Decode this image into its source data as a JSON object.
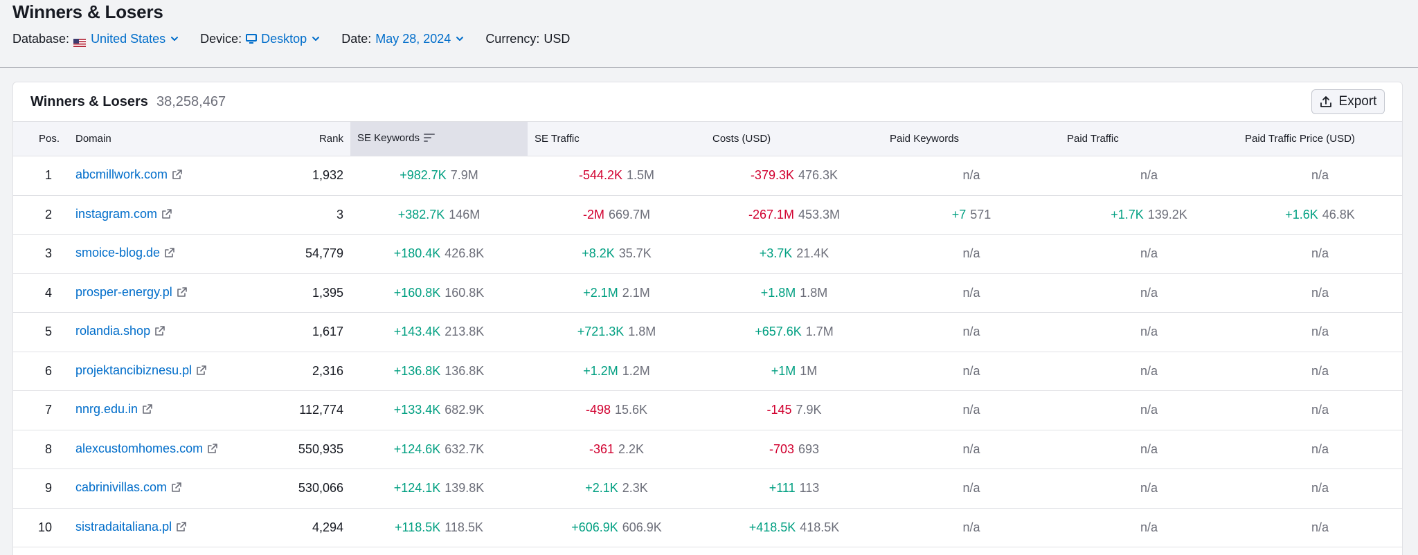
{
  "page": {
    "title": "Winners & Losers"
  },
  "filters": {
    "database_label": "Database:",
    "database_value": "United States",
    "device_label": "Device:",
    "device_value": "Desktop",
    "date_label": "Date:",
    "date_value": "May 28, 2024",
    "currency_label": "Currency:",
    "currency_value": "USD"
  },
  "card": {
    "title": "Winners & Losers",
    "count": "38,258,467",
    "export_label": "Export"
  },
  "table": {
    "columns": [
      "Pos.",
      "Domain",
      "Rank",
      "SE Keywords",
      "SE Traffic",
      "Costs (USD)",
      "Paid Keywords",
      "Paid Traffic",
      "Paid Traffic Price (USD)"
    ],
    "rows": [
      {
        "pos": "1",
        "domain": "abcmillwork.com",
        "rank": "1,932",
        "kw_delta": "+982.7K",
        "kw": "7.9M",
        "tr_delta": "-544.2K",
        "tr": "1.5M",
        "cost_delta": "-379.3K",
        "cost": "476.3K",
        "pk_delta": "",
        "pk": "n/a",
        "pt_delta": "",
        "pt": "n/a",
        "ptp_delta": "",
        "ptp": "n/a"
      },
      {
        "pos": "2",
        "domain": "instagram.com",
        "rank": "3",
        "kw_delta": "+382.7K",
        "kw": "146M",
        "tr_delta": "-2M",
        "tr": "669.7M",
        "cost_delta": "-267.1M",
        "cost": "453.3M",
        "pk_delta": "+7",
        "pk": "571",
        "pt_delta": "+1.7K",
        "pt": "139.2K",
        "ptp_delta": "+1.6K",
        "ptp": "46.8K"
      },
      {
        "pos": "3",
        "domain": "smoice-blog.de",
        "rank": "54,779",
        "kw_delta": "+180.4K",
        "kw": "426.8K",
        "tr_delta": "+8.2K",
        "tr": "35.7K",
        "cost_delta": "+3.7K",
        "cost": "21.4K",
        "pk_delta": "",
        "pk": "n/a",
        "pt_delta": "",
        "pt": "n/a",
        "ptp_delta": "",
        "ptp": "n/a"
      },
      {
        "pos": "4",
        "domain": "prosper-energy.pl",
        "rank": "1,395",
        "kw_delta": "+160.8K",
        "kw": "160.8K",
        "tr_delta": "+2.1M",
        "tr": "2.1M",
        "cost_delta": "+1.8M",
        "cost": "1.8M",
        "pk_delta": "",
        "pk": "n/a",
        "pt_delta": "",
        "pt": "n/a",
        "ptp_delta": "",
        "ptp": "n/a"
      },
      {
        "pos": "5",
        "domain": "rolandia.shop",
        "rank": "1,617",
        "kw_delta": "+143.4K",
        "kw": "213.8K",
        "tr_delta": "+721.3K",
        "tr": "1.8M",
        "cost_delta": "+657.6K",
        "cost": "1.7M",
        "pk_delta": "",
        "pk": "n/a",
        "pt_delta": "",
        "pt": "n/a",
        "ptp_delta": "",
        "ptp": "n/a"
      },
      {
        "pos": "6",
        "domain": "projektancibiznesu.pl",
        "rank": "2,316",
        "kw_delta": "+136.8K",
        "kw": "136.8K",
        "tr_delta": "+1.2M",
        "tr": "1.2M",
        "cost_delta": "+1M",
        "cost": "1M",
        "pk_delta": "",
        "pk": "n/a",
        "pt_delta": "",
        "pt": "n/a",
        "ptp_delta": "",
        "ptp": "n/a"
      },
      {
        "pos": "7",
        "domain": "nnrg.edu.in",
        "rank": "112,774",
        "kw_delta": "+133.4K",
        "kw": "682.9K",
        "tr_delta": "-498",
        "tr": "15.6K",
        "cost_delta": "-145",
        "cost": "7.9K",
        "pk_delta": "",
        "pk": "n/a",
        "pt_delta": "",
        "pt": "n/a",
        "ptp_delta": "",
        "ptp": "n/a"
      },
      {
        "pos": "8",
        "domain": "alexcustomhomes.com",
        "rank": "550,935",
        "kw_delta": "+124.6K",
        "kw": "632.7K",
        "tr_delta": "-361",
        "tr": "2.2K",
        "cost_delta": "-703",
        "cost": "693",
        "pk_delta": "",
        "pk": "n/a",
        "pt_delta": "",
        "pt": "n/a",
        "ptp_delta": "",
        "ptp": "n/a"
      },
      {
        "pos": "9",
        "domain": "cabrinivillas.com",
        "rank": "530,066",
        "kw_delta": "+124.1K",
        "kw": "139.8K",
        "tr_delta": "+2.1K",
        "tr": "2.3K",
        "cost_delta": "+111",
        "cost": "113",
        "pk_delta": "",
        "pk": "n/a",
        "pt_delta": "",
        "pt": "n/a",
        "ptp_delta": "",
        "ptp": "n/a"
      },
      {
        "pos": "10",
        "domain": "sistradaitaliana.pl",
        "rank": "4,294",
        "kw_delta": "+118.5K",
        "kw": "118.5K",
        "tr_delta": "+606.9K",
        "tr": "606.9K",
        "cost_delta": "+418.5K",
        "cost": "418.5K",
        "pk_delta": "",
        "pk": "n/a",
        "pt_delta": "",
        "pt": "n/a",
        "ptp_delta": "",
        "ptp": "n/a"
      }
    ]
  },
  "colors": {
    "link": "#006dca",
    "positive": "#009f81",
    "negative": "#d1002f",
    "muted": "#6c6e79"
  },
  "icons": {
    "database_flag": "us-flag-icon",
    "device": "desktop-icon",
    "dropdown": "chevron-down-icon",
    "export": "upload-icon",
    "external_link": "external-link-icon",
    "sort": "sort-descending-icon"
  }
}
